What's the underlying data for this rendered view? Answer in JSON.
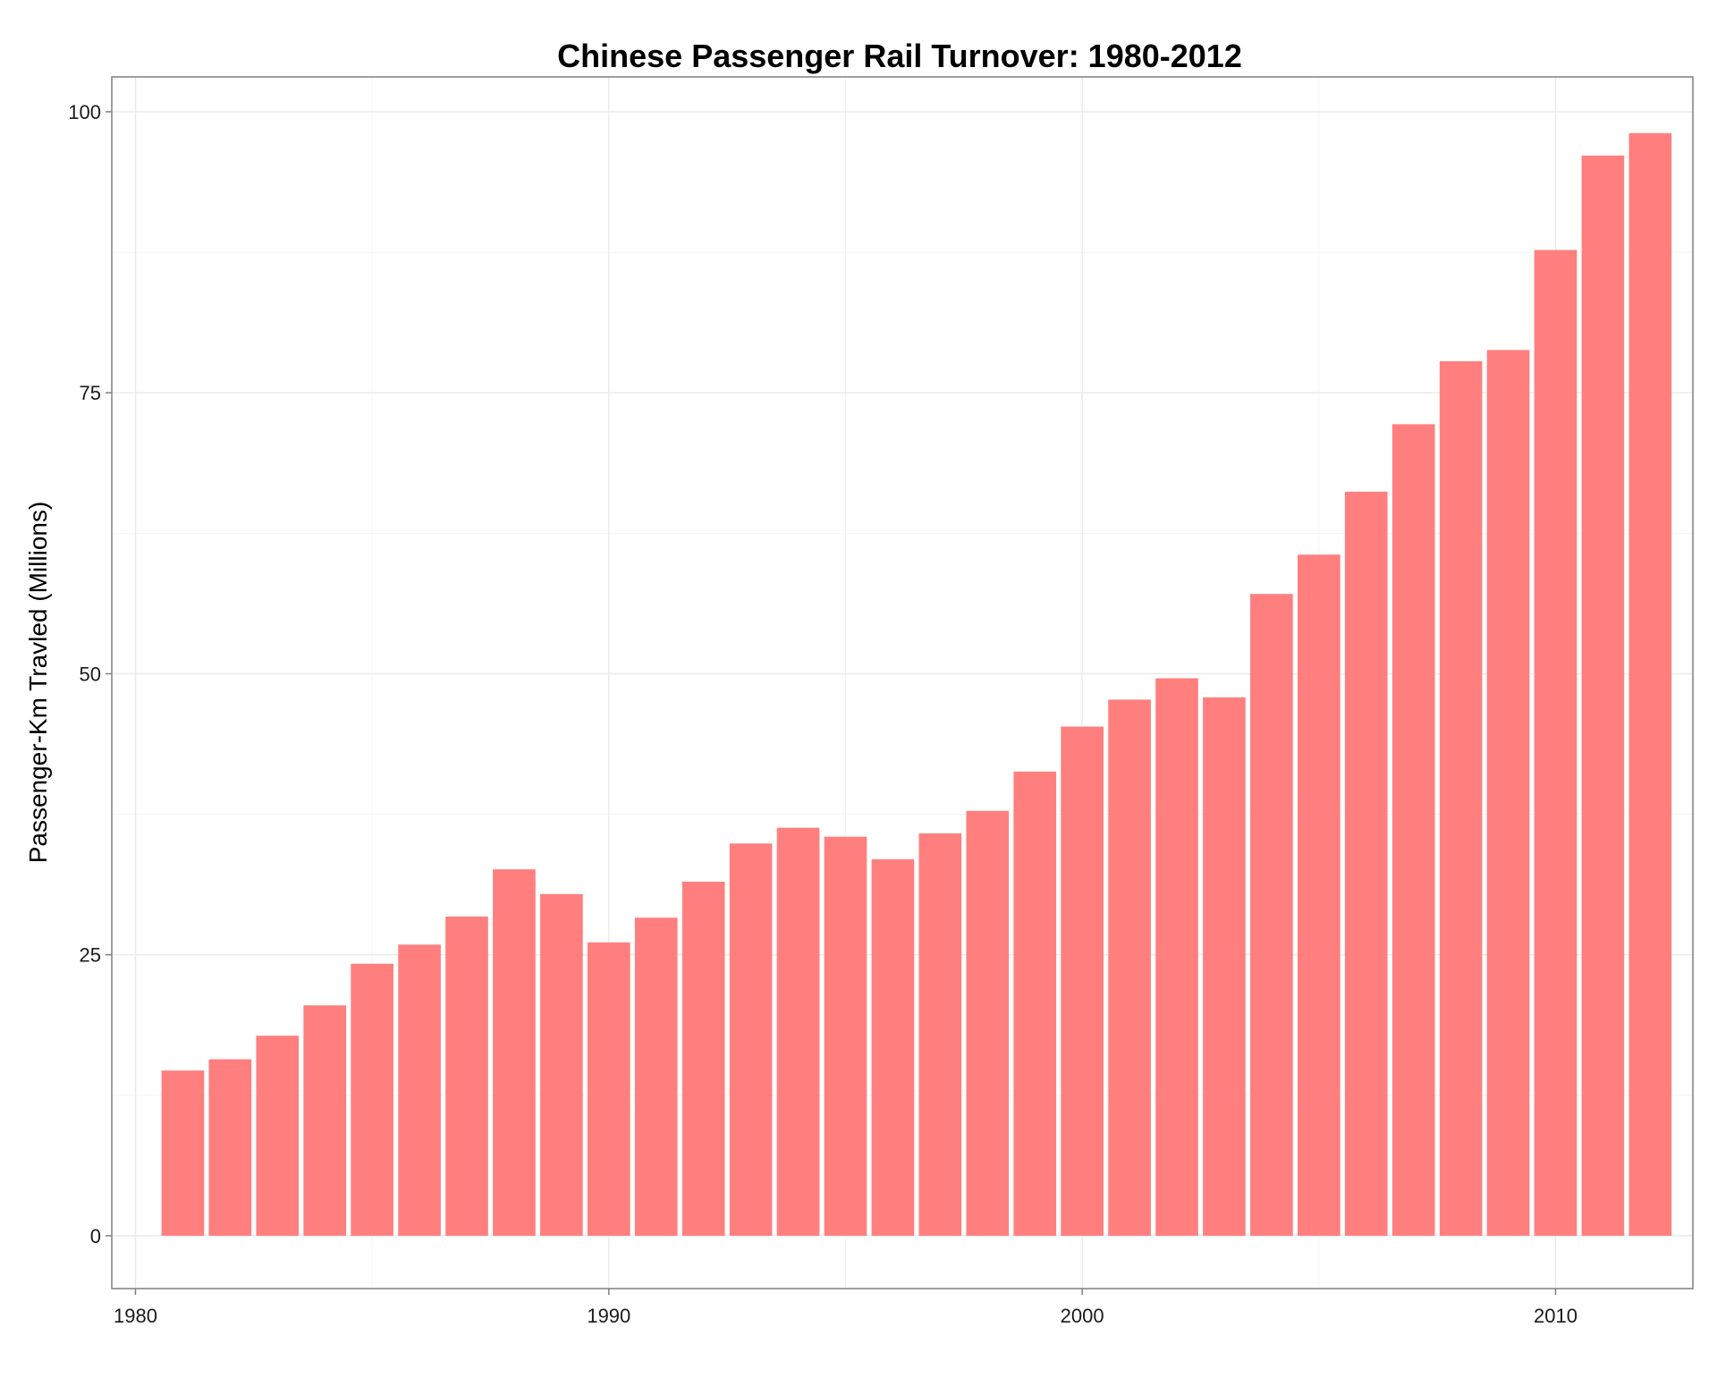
{
  "chart_data": {
    "type": "bar",
    "title": "Chinese Passenger Rail Turnover: 1980-2012",
    "xlabel": "",
    "ylabel": "Passenger-Km Travled (Millions)",
    "xlim": [
      1979.5,
      2012.9
    ],
    "ylim": [
      -4.7,
      103.1
    ],
    "x_ticks": [
      1980,
      1990,
      2000,
      2010
    ],
    "y_ticks": [
      0,
      25,
      50,
      75,
      100
    ],
    "grid": true,
    "legend": "none",
    "bar_color": "#ff7f7f",
    "categories": [
      1981,
      1982,
      1983,
      1984,
      1985,
      1986,
      1987,
      1988,
      1989,
      1990,
      1991,
      1992,
      1993,
      1994,
      1995,
      1996,
      1997,
      1998,
      1999,
      2000,
      2001,
      2002,
      2003,
      2004,
      2005,
      2006,
      2007,
      2008,
      2009,
      2010,
      2011,
      2012
    ],
    "values": [
      14.7,
      15.7,
      17.8,
      20.5,
      24.2,
      25.9,
      28.4,
      32.6,
      30.4,
      26.1,
      28.3,
      31.5,
      34.9,
      36.3,
      35.5,
      33.5,
      35.8,
      37.8,
      41.3,
      45.3,
      47.7,
      49.6,
      47.9,
      57.1,
      60.6,
      66.2,
      72.2,
      77.8,
      78.8,
      87.7,
      96.1,
      98.1
    ]
  }
}
